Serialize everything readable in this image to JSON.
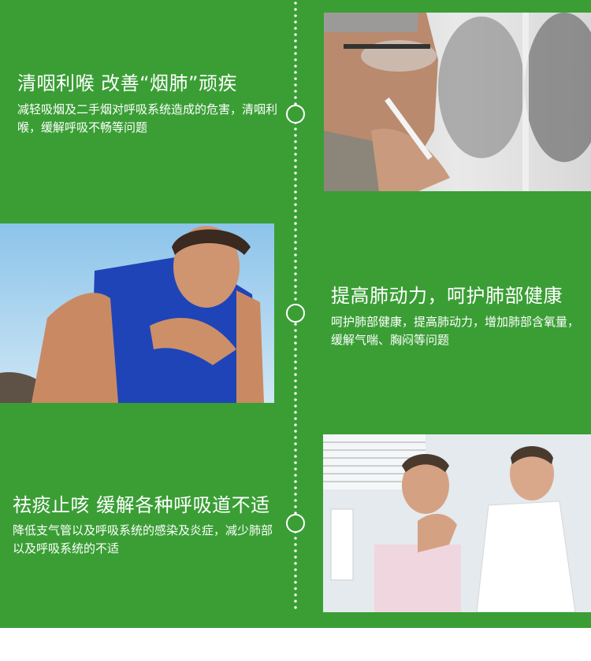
{
  "sections": [
    {
      "heading": "清咽利喉  改善“烟肺”顽疾",
      "description": "减轻吸烟及二手烟对呼吸系统造成的危害，清咽利喉，缓解呼吸不畅等问题"
    },
    {
      "heading": "提高肺动力，呵护肺部健康",
      "description": "呵护肺部健康，提高肺动力，增加肺部含氧量，缓解气喘、胸闷等问题"
    },
    {
      "heading": "祛痰止咳  缓解各种呼吸道不适",
      "description": "降低支气管以及呼吸系统的感染及炎症，减少肺部以及呼吸系统的不适"
    }
  ],
  "colors": {
    "background": "#3a9e35",
    "text": "#ffffff",
    "footer": "#ffffff"
  }
}
